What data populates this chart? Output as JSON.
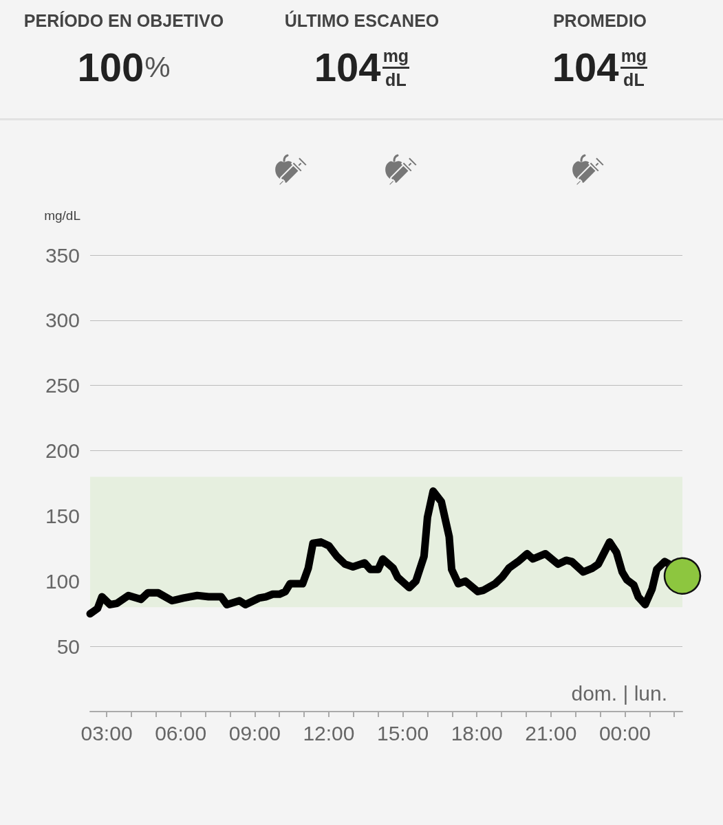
{
  "chart_data": [
    {
      "type": "other",
      "annotations": [
        "PERÍODO EN OBJETIVO",
        "100%",
        "ÚLTIMO ESCANEO",
        "104$^{mg}$$_{dL}$",
        "PROMEDIO",
        "104$^{mg}$$_{dL}$"
      ]
    },
    {
      "type": "line",
      "ylabel": "mg/dL",
      "annotations": [
        "dom. | lun."
      ],
      "xlim": [
        2.33,
        26.33
      ],
      "xticks": [
        {
          "value": 3,
          "label": "03:00"
        },
        {
          "value": 4,
          "label": null
        },
        {
          "value": 5,
          "label": null
        },
        {
          "value": 6,
          "label": "06:00"
        },
        {
          "value": 7,
          "label": null
        },
        {
          "value": 8,
          "label": null
        },
        {
          "value": 9,
          "label": "09:00"
        },
        {
          "value": 10,
          "label": null
        },
        {
          "value": 11,
          "label": null
        },
        {
          "value": 12,
          "label": "12:00"
        },
        {
          "value": 13,
          "label": null
        },
        {
          "value": 14,
          "label": null
        },
        {
          "value": 15,
          "label": "15:00"
        },
        {
          "value": 16,
          "label": null
        },
        {
          "value": 17,
          "label": null
        },
        {
          "value": 18,
          "label": "18:00"
        },
        {
          "value": 19,
          "label": null
        },
        {
          "value": 20,
          "label": null
        },
        {
          "value": 21,
          "label": "21:00"
        },
        {
          "value": 22,
          "label": null
        },
        {
          "value": 23,
          "label": null
        },
        {
          "value": 24,
          "label": "00:00"
        },
        {
          "value": 25,
          "label": null
        },
        {
          "value": 26,
          "label": null
        }
      ],
      "ylim": [
        0,
        350
      ],
      "yticks": [
        50,
        100,
        150,
        200,
        250,
        300,
        350
      ],
      "grid": "y",
      "line_style": "solid",
      "bands": [
        {
          "axis": "y",
          "from": 80,
          "to": 180,
          "color": "#e6efdf"
        }
      ],
      "series": [
        {
          "type": "line",
          "color": "#000000",
          "marker": "none",
          "x": [
            2.33,
            2.63,
            2.81,
            3.14,
            3.42,
            3.88,
            4.39,
            4.67,
            5.09,
            5.65,
            6.11,
            6.67,
            7.13,
            7.64,
            7.87,
            8.38,
            8.62,
            9.17,
            9.45,
            9.73,
            10.01,
            10.24,
            10.43,
            10.94,
            11.17,
            11.36,
            11.68,
            12.01,
            12.33,
            12.66,
            12.98,
            13.45,
            13.68,
            14.0,
            14.19,
            14.61,
            14.79,
            15.26,
            15.53,
            15.86,
            16.0,
            16.23,
            16.56,
            16.88,
            16.98,
            17.25,
            17.53,
            18.04,
            18.27,
            18.74,
            19.02,
            19.3,
            19.67,
            20.04,
            20.27,
            20.78,
            21.29,
            21.62,
            21.85,
            22.31,
            22.69,
            22.92,
            23.38,
            23.66,
            23.89,
            24.08,
            24.36,
            24.54,
            24.82,
            25.1,
            25.29,
            25.61,
            25.89
          ],
          "values": [
            75,
            79,
            88,
            82,
            83,
            89,
            86,
            91,
            91,
            85,
            87,
            89,
            88,
            88,
            82,
            85,
            82,
            87,
            88,
            90,
            90,
            92,
            98,
            98,
            110,
            129,
            130,
            127,
            119,
            113,
            111,
            114,
            109,
            109,
            117,
            110,
            103,
            95,
            100,
            119,
            149,
            169,
            161,
            134,
            109,
            98,
            100,
            92,
            93,
            98,
            103,
            110,
            115,
            121,
            117,
            121,
            113,
            116,
            115,
            107,
            110,
            113,
            130,
            122,
            107,
            101,
            97,
            88,
            82,
            94,
            109,
            115,
            112
          ]
        },
        {
          "type": "scatter",
          "color": "#8dc63f",
          "marker": "circle",
          "x": [
            26.33
          ],
          "values": [
            104
          ]
        }
      ]
    }
  ]
}
